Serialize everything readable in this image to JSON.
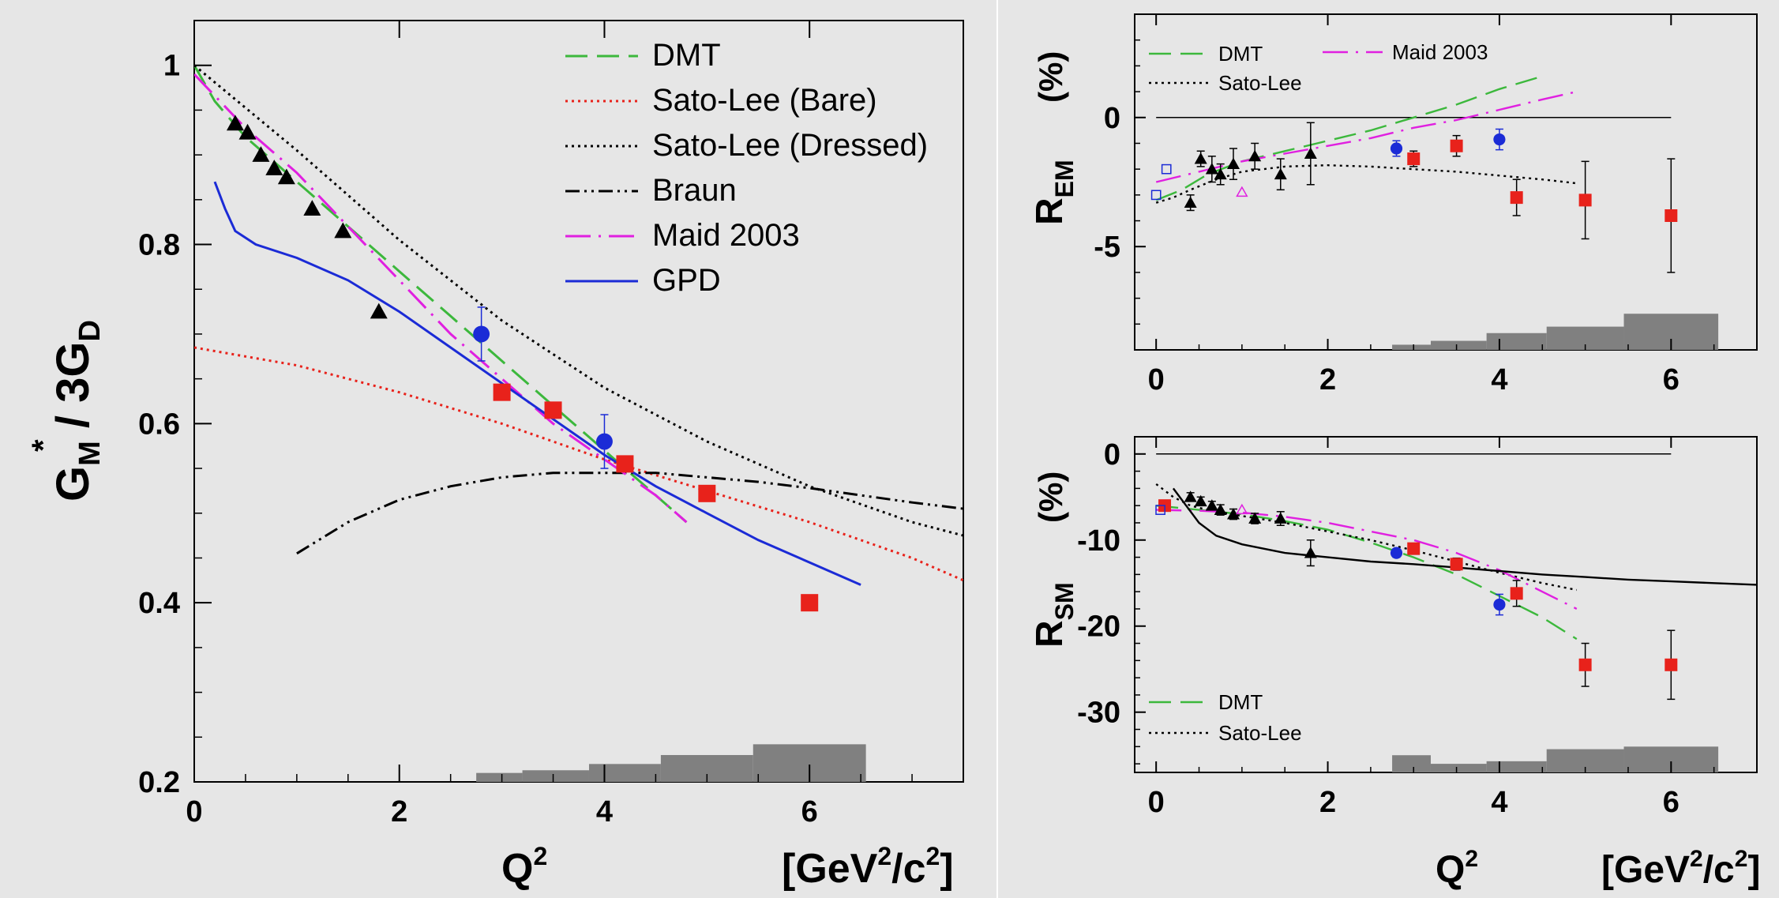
{
  "chart_data": [
    {
      "id": "gm",
      "type": "line",
      "xlabel": "Q",
      "xlabel_sup": "2",
      "units": {
        "pre": "[GeV",
        "sup1": "2",
        "mid": "/c",
        "sup2": "2",
        "post": "]"
      },
      "ylabel": {
        "g": "G",
        "star": "*",
        "m": "M",
        "mid": " / 3G",
        "d": "D"
      },
      "xlim": [
        0,
        7.5
      ],
      "ylim": [
        0.2,
        1.05
      ],
      "x_ticks": [
        "0",
        "2",
        "4",
        "6"
      ],
      "x_tick_values": [
        0,
        2,
        4,
        6
      ],
      "y_ticks": [
        "0.2",
        "0.4",
        "0.6",
        "0.8",
        "1"
      ],
      "y_tick_values": [
        0.2,
        0.4,
        0.6,
        0.8,
        1.0
      ],
      "legend": [
        "DMT",
        "Sato-Lee (Bare)",
        "Sato-Lee (Dressed)",
        "Braun",
        "Maid 2003",
        "GPD"
      ],
      "series": [
        {
          "name": "DMT",
          "color": "#3cb83c",
          "style": "dashed",
          "x": [
            0,
            0.2,
            0.5,
            1.0,
            1.5,
            2.0,
            2.5,
            3.0,
            3.5,
            4.0,
            4.5,
            4.8
          ],
          "y": [
            1.0,
            0.96,
            0.92,
            0.87,
            0.82,
            0.77,
            0.72,
            0.67,
            0.62,
            0.57,
            0.52,
            0.49
          ]
        },
        {
          "name": "Sato-Lee (Bare)",
          "color": "#e8221b",
          "style": "dotted",
          "x": [
            0,
            1,
            2,
            3,
            4,
            5,
            6,
            7,
            7.5
          ],
          "y": [
            0.685,
            0.665,
            0.635,
            0.6,
            0.56,
            0.525,
            0.49,
            0.45,
            0.425
          ]
        },
        {
          "name": "Sato-Lee (Dressed)",
          "color": "#000000",
          "style": "dotted",
          "x": [
            0,
            1,
            2,
            3,
            4,
            5,
            6,
            7,
            7.5
          ],
          "y": [
            1.0,
            0.905,
            0.805,
            0.715,
            0.64,
            0.58,
            0.53,
            0.49,
            0.475
          ]
        },
        {
          "name": "Braun",
          "color": "#000000",
          "style": "dashdotdot",
          "x": [
            1.0,
            1.5,
            2.0,
            2.5,
            3.0,
            3.5,
            4.0,
            4.5,
            5.0,
            5.5,
            6.0,
            6.5,
            7.0,
            7.5
          ],
          "y": [
            0.455,
            0.49,
            0.515,
            0.53,
            0.54,
            0.545,
            0.545,
            0.545,
            0.54,
            0.535,
            0.528,
            0.52,
            0.512,
            0.505
          ]
        },
        {
          "name": "Maid 2003",
          "color": "#e020e0",
          "style": "longdashdot",
          "x": [
            0,
            0.5,
            1.0,
            1.5,
            2.0,
            2.5,
            3.0,
            3.5,
            4.0,
            4.5,
            4.8
          ],
          "y": [
            0.99,
            0.93,
            0.88,
            0.82,
            0.76,
            0.7,
            0.65,
            0.6,
            0.56,
            0.52,
            0.49
          ]
        },
        {
          "name": "GPD",
          "color": "#1b2bd6",
          "style": "solid",
          "x": [
            0.2,
            0.3,
            0.4,
            0.6,
            1.0,
            1.5,
            2.0,
            2.5,
            3.0,
            3.5,
            4.0,
            4.5,
            5.0,
            5.5,
            6.0,
            6.5
          ],
          "y": [
            0.87,
            0.84,
            0.815,
            0.8,
            0.785,
            0.76,
            0.725,
            0.685,
            0.645,
            0.605,
            0.565,
            0.53,
            0.5,
            0.47,
            0.445,
            0.42
          ]
        }
      ],
      "points": [
        {
          "marker": "triangle",
          "color": "#000000",
          "x": [
            0.4,
            0.52,
            0.65,
            0.78,
            0.9,
            1.15,
            1.45,
            1.8
          ],
          "y": [
            0.935,
            0.925,
            0.9,
            0.885,
            0.875,
            0.84,
            0.815,
            0.725
          ]
        },
        {
          "marker": "circle",
          "color": "#1b2bd6",
          "x": [
            2.8,
            4.0
          ],
          "y": [
            0.7,
            0.58
          ],
          "err": [
            0.03,
            0.03
          ]
        },
        {
          "marker": "square",
          "color": "#e8221b",
          "x": [
            3.0,
            3.5,
            4.2,
            5.0,
            6.0
          ],
          "y": [
            0.635,
            0.615,
            0.555,
            0.522,
            0.4
          ],
          "err": [
            0.005,
            0.005,
            0.008,
            0.008,
            0.006
          ]
        }
      ],
      "syst_bars": [
        {
          "x0": 2.75,
          "x1": 3.2,
          "h": 0.01
        },
        {
          "x0": 3.2,
          "x1": 3.85,
          "h": 0.013
        },
        {
          "x0": 3.85,
          "x1": 4.55,
          "h": 0.02
        },
        {
          "x0": 4.55,
          "x1": 5.45,
          "h": 0.03
        },
        {
          "x0": 5.45,
          "x1": 6.55,
          "h": 0.042
        }
      ]
    },
    {
      "id": "rem",
      "type": "line",
      "xlabel": "",
      "ylabel": {
        "r": "R",
        "sub": "EM",
        "unit": "(%)"
      },
      "xlim": [
        -0.25,
        7.0
      ],
      "ylim": [
        -9,
        4
      ],
      "x_ticks": [
        "0",
        "2",
        "4",
        "6"
      ],
      "x_tick_values": [
        0,
        2,
        4,
        6
      ],
      "y_ticks": [
        "-5",
        "0"
      ],
      "y_tick_values": [
        -5,
        0
      ],
      "legend": [
        "DMT",
        "Sato-Lee",
        "Maid 2003"
      ],
      "zero_line_x": [
        0,
        6
      ],
      "series": [
        {
          "name": "DMT",
          "color": "#3cb83c",
          "style": "dashed",
          "x": [
            0,
            0.3,
            0.6,
            1.0,
            1.5,
            2.0,
            2.5,
            3.0,
            3.5,
            4.0,
            4.5
          ],
          "y": [
            -3.2,
            -2.8,
            -2.2,
            -1.7,
            -1.3,
            -0.9,
            -0.5,
            0.0,
            0.5,
            1.1,
            1.6
          ]
        },
        {
          "name": "Sato-Lee",
          "color": "#000000",
          "style": "dotted",
          "x": [
            0,
            0.2,
            0.4,
            0.7,
            1.0,
            1.5,
            2.0,
            2.5,
            3.0,
            3.5,
            4.0,
            4.5,
            4.9
          ],
          "y": [
            -3.3,
            -3.1,
            -2.8,
            -2.4,
            -2.1,
            -1.9,
            -1.85,
            -1.9,
            -2.0,
            -2.1,
            -2.25,
            -2.4,
            -2.55
          ]
        },
        {
          "name": "Maid 2003",
          "color": "#e020e0",
          "style": "longdashdot",
          "x": [
            0,
            0.5,
            1.0,
            1.5,
            2.0,
            2.5,
            3.0,
            3.5,
            4.0,
            4.5,
            4.9
          ],
          "y": [
            -2.5,
            -2.1,
            -1.7,
            -1.4,
            -1.1,
            -0.8,
            -0.4,
            -0.1,
            0.3,
            0.7,
            1.0
          ]
        }
      ],
      "points": [
        {
          "marker": "triangle",
          "color": "#000000",
          "x": [
            0.4,
            0.52,
            0.65,
            0.75,
            0.9,
            1.15,
            1.45,
            1.8
          ],
          "y": [
            -3.3,
            -1.6,
            -2.0,
            -2.2,
            -1.8,
            -1.5,
            -2.2,
            -1.4
          ],
          "err": [
            0.3,
            0.3,
            0.5,
            0.4,
            0.6,
            0.5,
            0.6,
            1.2
          ]
        },
        {
          "marker": "circle",
          "color": "#1b2bd6",
          "x": [
            2.8,
            4.0
          ],
          "y": [
            -1.2,
            -0.85
          ],
          "err": [
            0.3,
            0.4
          ]
        },
        {
          "marker": "square",
          "color": "#e8221b",
          "x": [
            3.0,
            3.5,
            4.2,
            5.0,
            6.0
          ],
          "y": [
            -1.6,
            -1.1,
            -3.1,
            -3.2,
            -3.8
          ],
          "err": [
            0.3,
            0.4,
            0.7,
            1.5,
            2.2
          ]
        },
        {
          "marker": "open-square",
          "color": "#1b2bd6",
          "x": [
            0.0,
            0.12
          ],
          "y": [
            -3.0,
            -2.0
          ]
        },
        {
          "marker": "open-triangle",
          "color": "#e020e0",
          "x": [
            1.0
          ],
          "y": [
            -2.9
          ]
        }
      ],
      "syst_bars": [
        {
          "x0": 2.75,
          "x1": 3.2,
          "h": 0.2
        },
        {
          "x0": 3.2,
          "x1": 3.85,
          "h": 0.35
        },
        {
          "x0": 3.85,
          "x1": 4.55,
          "h": 0.65
        },
        {
          "x0": 4.55,
          "x1": 5.45,
          "h": 0.9
        },
        {
          "x0": 5.45,
          "x1": 6.55,
          "h": 1.4
        }
      ]
    },
    {
      "id": "rsm",
      "type": "line",
      "xlabel": "Q",
      "xlabel_sup": "2",
      "units": {
        "pre": "[GeV",
        "sup1": "2",
        "mid": "/c",
        "sup2": "2",
        "post": "]"
      },
      "ylabel": {
        "r": "R",
        "sub": "SM",
        "unit": "(%)"
      },
      "xlim": [
        -0.25,
        7.0
      ],
      "ylim": [
        -37,
        2
      ],
      "x_ticks": [
        "0",
        "2",
        "4",
        "6"
      ],
      "x_tick_values": [
        0,
        2,
        4,
        6
      ],
      "y_ticks": [
        "-30",
        "-20",
        "-10",
        "0"
      ],
      "y_tick_values": [
        -30,
        -20,
        -10,
        0
      ],
      "legend": [
        "DMT",
        "Sato-Lee"
      ],
      "zero_line_x": [
        0,
        6
      ],
      "series": [
        {
          "name": "DMT",
          "color": "#3cb83c",
          "style": "dashed",
          "x": [
            0,
            0.5,
            1.0,
            1.5,
            2.0,
            2.5,
            3.0,
            3.5,
            4.0,
            4.5,
            4.9
          ],
          "y": [
            -6.0,
            -6.5,
            -7.0,
            -7.8,
            -8.8,
            -10.3,
            -12.0,
            -14.0,
            -16.5,
            -19.0,
            -21.5
          ]
        },
        {
          "name": "Sato-Lee",
          "color": "#000000",
          "style": "dotted",
          "x": [
            0,
            0.2,
            0.4,
            0.6,
            1.0,
            1.5,
            2.0,
            2.5,
            3.0,
            3.5,
            4.0,
            4.5,
            4.9
          ],
          "y": [
            -3.5,
            -5.0,
            -6.0,
            -6.5,
            -7.2,
            -8.0,
            -9.0,
            -10.0,
            -11.2,
            -12.5,
            -13.8,
            -15.0,
            -15.8
          ]
        },
        {
          "name": "Maid 2003",
          "color": "#e020e0",
          "style": "longdashdot",
          "x": [
            0,
            0.5,
            1.0,
            1.5,
            2.0,
            2.5,
            3.0,
            3.5,
            4.0,
            4.5,
            4.9
          ],
          "y": [
            -6.5,
            -6.6,
            -6.8,
            -7.3,
            -8.0,
            -9.0,
            -10.0,
            -11.5,
            -13.5,
            -16.0,
            -18.0
          ]
        },
        {
          "name": "",
          "color": "#000000",
          "style": "solid",
          "x": [
            0.2,
            0.35,
            0.5,
            0.7,
            1.0,
            1.5,
            2.0,
            2.5,
            3.0,
            3.5,
            4.0,
            4.5,
            5.0,
            5.5,
            6.0,
            6.5,
            7.0
          ],
          "y": [
            -4.0,
            -6.0,
            -8.0,
            -9.5,
            -10.5,
            -11.5,
            -12.0,
            -12.5,
            -12.8,
            -13.2,
            -13.6,
            -14.0,
            -14.3,
            -14.6,
            -14.8,
            -15.0,
            -15.2
          ]
        }
      ],
      "points": [
        {
          "marker": "triangle",
          "color": "#000000",
          "x": [
            0.4,
            0.52,
            0.65,
            0.75,
            0.9,
            1.15,
            1.45,
            1.8
          ],
          "y": [
            -5.0,
            -5.5,
            -6.0,
            -6.5,
            -7.0,
            -7.5,
            -7.5,
            -11.5
          ],
          "err": [
            0.5,
            0.5,
            0.5,
            0.6,
            0.6,
            0.6,
            0.8,
            1.5
          ]
        },
        {
          "marker": "circle",
          "color": "#1b2bd6",
          "x": [
            2.8,
            4.0
          ],
          "y": [
            -11.5,
            -17.5
          ],
          "err": [
            0.5,
            1.2
          ]
        },
        {
          "marker": "square",
          "color": "#e8221b",
          "x": [
            0.1,
            3.0,
            3.5,
            4.2,
            5.0,
            6.0
          ],
          "y": [
            -6.0,
            -11.0,
            -12.8,
            -16.2,
            -24.5,
            -24.5
          ],
          "err": [
            0.5,
            0.5,
            0.7,
            1.5,
            2.5,
            4.0
          ]
        },
        {
          "marker": "open-square",
          "color": "#1b2bd6",
          "x": [
            0.05
          ],
          "y": [
            -6.5
          ]
        },
        {
          "marker": "open-triangle",
          "color": "#e020e0",
          "x": [
            1.0
          ],
          "y": [
            -6.5
          ]
        }
      ],
      "syst_bars": [
        {
          "x0": 2.75,
          "x1": 3.2,
          "h": 2.0
        },
        {
          "x0": 3.2,
          "x1": 3.85,
          "h": 1.0
        },
        {
          "x0": 3.85,
          "x1": 4.55,
          "h": 1.3
        },
        {
          "x0": 4.55,
          "x1": 5.45,
          "h": 2.7
        },
        {
          "x0": 5.45,
          "x1": 6.55,
          "h": 3.0
        }
      ]
    }
  ]
}
